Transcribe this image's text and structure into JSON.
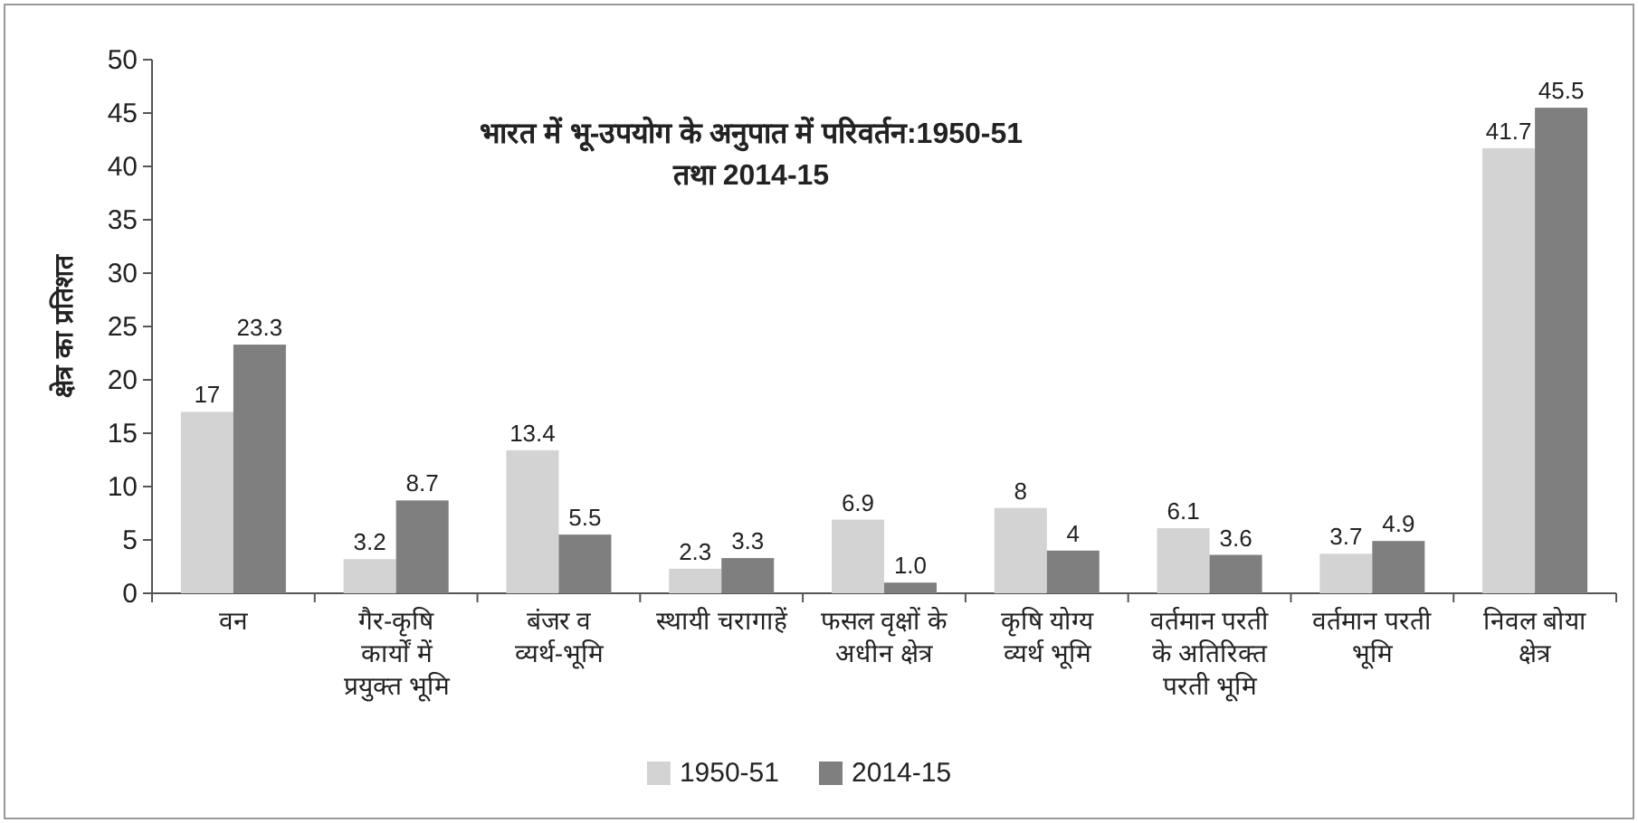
{
  "chart_data": {
    "type": "bar",
    "title": "भारत में भू-उपयोग के अनुपात में परिवर्तन:1950-51 तथा 2014-15",
    "ylabel": "क्षेत्र का प्रतिशत",
    "categories": [
      "वन",
      "गैर-कृषि कार्यों में प्रयुक्त भूमि",
      "बंजर व व्यर्थ-भूमि",
      "स्थायी चरागाहें",
      "फसल वृक्षों के अधीन क्षेत्र",
      "कृषि योग्य व्यर्थ भूमि",
      "वर्तमान परती के अतिरिक्त परती भूमि",
      "वर्तमान परती भूमि",
      "निवल बोया क्षेत्र"
    ],
    "series": [
      {
        "name": "1950-51",
        "color": "#d3d3d3",
        "values": [
          17,
          3.2,
          13.4,
          2.3,
          6.9,
          8,
          6.1,
          3.7,
          41.7
        ],
        "value_labels": [
          "17",
          "3.2",
          "13.4",
          "2.3",
          "6.9",
          "8",
          "6.1",
          "3.7",
          "41.7"
        ]
      },
      {
        "name": "2014-15",
        "color": "#7f7f7f",
        "values": [
          23.3,
          8.7,
          5.5,
          3.3,
          1.0,
          4,
          3.6,
          4.9,
          45.5
        ],
        "value_labels": [
          "23.3",
          "8.7",
          "5.5",
          "3.3",
          "1.0",
          "4",
          "3.6",
          "4.9",
          "45.5"
        ]
      }
    ],
    "ylim": [
      0,
      50
    ],
    "yticks": [
      0,
      5,
      10,
      15,
      20,
      25,
      30,
      35,
      40,
      45,
      50
    ],
    "legend": "bottom"
  }
}
